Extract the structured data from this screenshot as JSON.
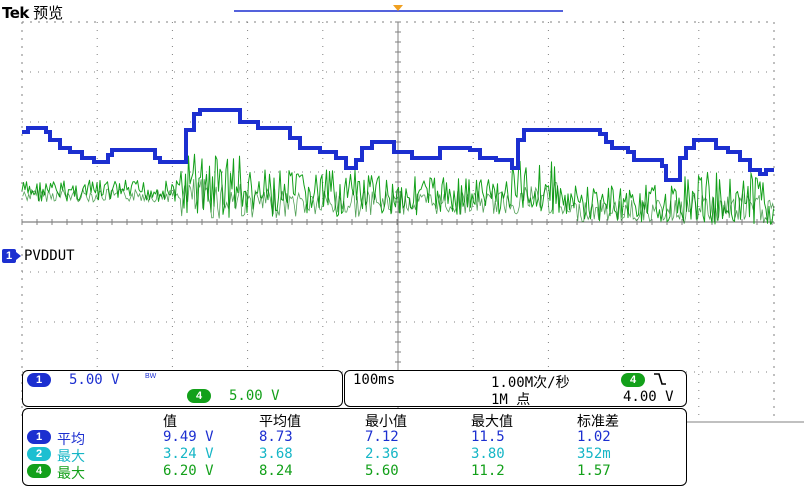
{
  "title": {
    "brand": "Tek",
    "mode": "预览"
  },
  "channel_label": {
    "number": "1",
    "name": "PVDDUT"
  },
  "channel_panel": {
    "ch1": {
      "number": "1",
      "scale": "5.00 V",
      "bw": "BW"
    },
    "ch4": {
      "number": "4",
      "scale": "5.00 V"
    }
  },
  "timebase": {
    "time_per_div": "100ms",
    "sample_rate": "1.00M次/秒",
    "record_length": "1M 点",
    "trigger_channel": "4",
    "trigger_slope_icon": "falling-edge-icon",
    "trigger_level": "4.00 V"
  },
  "measurements": {
    "headers": [
      "值",
      "平均值",
      "最小值",
      "最大值",
      "标准差"
    ],
    "rows": [
      {
        "channel": "1",
        "type": "平均",
        "color": "#1c2fd0",
        "values": [
          "9.49 V",
          "8.73",
          "7.12",
          "11.5",
          "1.02"
        ]
      },
      {
        "channel": "2",
        "type": "最大",
        "color": "#16b6c6",
        "values": [
          "3.24 V",
          "3.68",
          "2.36",
          "3.80",
          "352m"
        ]
      },
      {
        "channel": "4",
        "type": "最大",
        "color": "#13a01a",
        "values": [
          "6.20 V",
          "8.24",
          "5.60",
          "11.2",
          "1.57"
        ]
      }
    ]
  },
  "colors": {
    "ch1": "#1c2fd0",
    "ch2": "#16b6c6",
    "ch4": "#13a01a",
    "grid": "#808080"
  }
}
